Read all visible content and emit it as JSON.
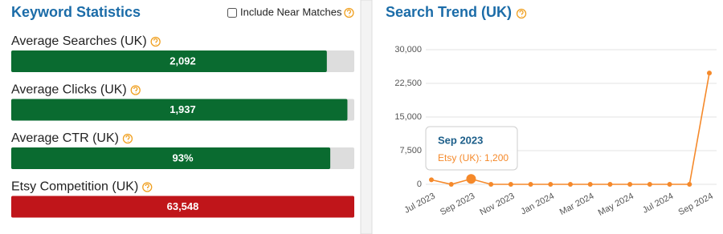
{
  "keyword_statistics": {
    "title": "Keyword Statistics",
    "option": "Include Near Matches",
    "stats": [
      {
        "label": "Average Searches (UK)",
        "value": "2,092",
        "fill": 92,
        "color": "#0a6b30"
      },
      {
        "label": "Average Clicks (UK)",
        "value": "1,937",
        "fill": 98,
        "color": "#0a6b30"
      },
      {
        "label": "Average CTR (UK)",
        "value": "93%",
        "fill": 93,
        "color": "#0a6b30"
      },
      {
        "label": "Etsy Competition (UK)",
        "value": "63,548",
        "fill": 100,
        "color": "#c0151a"
      }
    ]
  },
  "chart_data": {
    "type": "line",
    "title": "Search Trend (UK)",
    "categories": [
      "Jul 2023",
      null,
      "Sep 2023",
      null,
      "Nov 2023",
      null,
      "Jan 2024",
      null,
      "Mar 2024",
      null,
      "May 2024",
      null,
      "Jul 2024",
      null,
      "Sep 2024"
    ],
    "series": [
      {
        "name": "Etsy (UK)",
        "color": "#f5892a",
        "values": [
          1000,
          0,
          1200,
          0,
          0,
          0,
          0,
          0,
          0,
          0,
          0,
          0,
          0,
          0,
          24800
        ],
        "value_labels": [
          null,
          null,
          "1,200",
          null,
          null,
          null,
          null,
          null,
          null,
          null,
          null,
          null,
          null,
          null,
          null
        ]
      }
    ],
    "ylim": [
      0,
      30000
    ],
    "yticks": [
      {
        "value": 0,
        "label": "0"
      },
      {
        "value": 7500,
        "label": "7,500"
      },
      {
        "value": 15000,
        "label": "15,000"
      },
      {
        "value": 22500,
        "label": "22,500"
      },
      {
        "value": 30000,
        "label": "30,000"
      }
    ],
    "grid": true
  }
}
